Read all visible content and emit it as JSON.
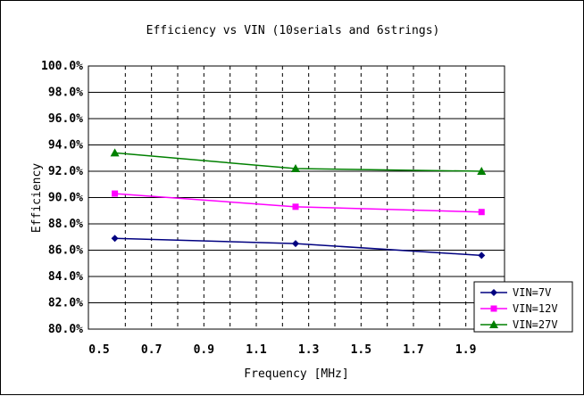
{
  "chart_data": {
    "type": "line",
    "title": "Efficiency vs VIN (10serials and 6strings)",
    "xlabel": "Frequency [MHz]",
    "ylabel": "Efficiency",
    "xlim": [
      0.5,
      2.0
    ],
    "ylim": [
      80.0,
      100.0
    ],
    "x_tick_labels": [
      "0.5",
      "0.7",
      "0.9",
      "1.1",
      "1.3",
      "1.5",
      "1.7",
      "1.9"
    ],
    "y_tick_labels": [
      "80.0%",
      "82.0%",
      "84.0%",
      "86.0%",
      "88.0%",
      "90.0%",
      "92.0%",
      "94.0%",
      "96.0%",
      "98.0%",
      "100.0%"
    ],
    "grid": {
      "horizontal": "solid",
      "vertical": "dashed"
    },
    "legend_position": "bottom-right",
    "series": [
      {
        "name": "VIN=7V",
        "color": "#000080",
        "marker": "diamond",
        "x": [
          0.56,
          1.25,
          1.96
        ],
        "y": [
          86.9,
          86.5,
          85.6
        ]
      },
      {
        "name": "VIN=12V",
        "color": "#ff00ff",
        "marker": "square",
        "x": [
          0.56,
          1.25,
          1.96
        ],
        "y": [
          90.3,
          89.3,
          88.9
        ]
      },
      {
        "name": "VIN=27V",
        "color": "#008000",
        "marker": "triangle",
        "x": [
          0.56,
          1.25,
          1.96
        ],
        "y": [
          93.4,
          92.2,
          92.0
        ]
      }
    ]
  }
}
